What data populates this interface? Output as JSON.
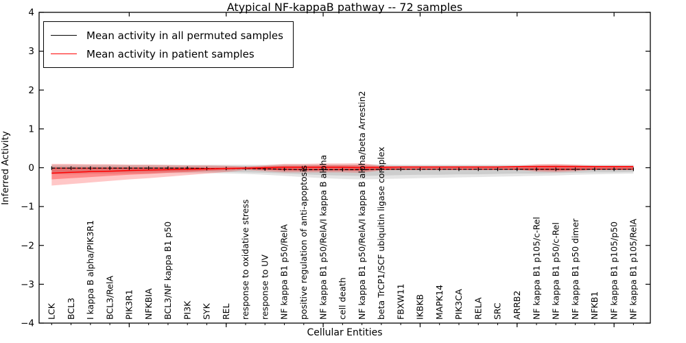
{
  "title": "Atypical NF-kappaB pathway -- 72 samples",
  "legend": {
    "items": [
      {
        "label": "Mean activity in all permuted samples",
        "color": "#000000"
      },
      {
        "label": "Mean activity in patient samples",
        "color": "#ff0000"
      }
    ]
  },
  "axes": {
    "xlabel": "Cellular Entities",
    "ylabel": "Inferred Activity"
  },
  "colors": {
    "permuted_line": "#000000",
    "patient_line": "#ff0000",
    "permuted_band": "rgba(0,0,0,0.10)",
    "patient_band_outer": "rgba(255,0,0,0.22)",
    "patient_band_inner": "rgba(255,0,0,0.30)"
  },
  "chart_data": {
    "type": "line",
    "title": "Atypical NF-kappaB pathway -- 72 samples",
    "xlabel": "Cellular Entities",
    "ylabel": "Inferred Activity",
    "ylim": [
      -4,
      4
    ],
    "yticks": [
      -4,
      -3,
      -2,
      -1,
      0,
      1,
      2,
      3,
      4
    ],
    "grid": false,
    "legend_position": "upper left",
    "top_tick_indices": [
      4,
      9,
      14,
      19,
      24,
      29
    ],
    "categories": [
      "LCK",
      "BCL3",
      "I kappa B alpha/PIK3R1",
      "BCL3/RelA",
      "PIK3R1",
      "NFKBIA",
      "BCL3/NF kappa B1 p50",
      "PI3K",
      "SYK",
      "REL",
      "response to oxidative stress",
      "response to UV",
      "NF kappa B1 p50/RelA",
      "positive regulation of anti-apoptosis",
      "NF kappa B1 p50/RelA/I kappa B alpha",
      "cell death",
      "NF kappa B1 p50/RelA/I kappa B alpha/beta Arrestin2",
      "beta TrCP1/SCF ubiquitin ligase complex",
      "FBXW11",
      "IKBKB",
      "MAPK14",
      "PIK3CA",
      "RELA",
      "SRC",
      "ARRB2",
      "NF kappa B1 p105/c-Rel",
      "NF kappa B1 p50/c-Rel",
      "NF kappa B1 p50 dimer",
      "NFKB1",
      "NF kappa B1 p105/p50",
      "NF kappa B1 p105/RelA"
    ],
    "series": [
      {
        "name": "Mean activity in all permuted samples",
        "color": "#000000",
        "style": "dashed-with-tick-markers",
        "values": [
          -0.01,
          -0.01,
          -0.01,
          -0.01,
          -0.01,
          -0.01,
          -0.01,
          -0.01,
          -0.02,
          -0.02,
          -0.02,
          -0.03,
          -0.04,
          -0.05,
          -0.05,
          -0.05,
          -0.05,
          -0.04,
          -0.04,
          -0.04,
          -0.04,
          -0.04,
          -0.04,
          -0.04,
          -0.04,
          -0.04,
          -0.04,
          -0.04,
          -0.04,
          -0.04,
          -0.04
        ]
      },
      {
        "name": "Mean activity in patient samples",
        "color": "#ff0000",
        "style": "solid",
        "values": [
          -0.14,
          -0.12,
          -0.1,
          -0.09,
          -0.07,
          -0.06,
          -0.05,
          -0.04,
          -0.03,
          -0.02,
          -0.01,
          0.0,
          0.01,
          0.01,
          0.01,
          0.01,
          0.0,
          0.01,
          0.02,
          0.02,
          0.02,
          0.02,
          0.02,
          0.02,
          0.03,
          0.03,
          0.03,
          0.03,
          0.03,
          0.03,
          0.03
        ]
      }
    ],
    "bands": [
      {
        "name": "permuted-range-outer",
        "color": "rgba(0,0,0,0.10)",
        "upper": [
          0.08,
          0.08,
          0.08,
          0.08,
          0.08,
          0.08,
          0.08,
          0.08,
          0.08,
          0.08,
          0.08,
          0.08,
          0.09,
          0.09,
          0.09,
          0.09,
          0.09,
          0.09,
          0.08,
          0.08,
          0.08,
          0.08,
          0.08,
          0.08,
          0.08,
          0.08,
          0.08,
          0.08,
          0.08,
          0.08,
          0.08
        ],
        "lower": [
          -0.17,
          -0.17,
          -0.16,
          -0.16,
          -0.15,
          -0.15,
          -0.14,
          -0.14,
          -0.14,
          -0.15,
          -0.16,
          -0.18,
          -0.21,
          -0.24,
          -0.27,
          -0.29,
          -0.3,
          -0.29,
          -0.28,
          -0.27,
          -0.26,
          -0.25,
          -0.24,
          -0.23,
          -0.22,
          -0.21,
          -0.2,
          -0.18,
          -0.17,
          -0.16,
          -0.15
        ]
      },
      {
        "name": "permuted-range-inner",
        "color": "rgba(0,0,0,0.10)",
        "upper": [
          0.05,
          0.05,
          0.05,
          0.05,
          0.05,
          0.05,
          0.05,
          0.05,
          0.05,
          0.05,
          0.05,
          0.05,
          0.06,
          0.06,
          0.06,
          0.06,
          0.06,
          0.06,
          0.05,
          0.05,
          0.05,
          0.05,
          0.05,
          0.05,
          0.05,
          0.05,
          0.05,
          0.05,
          0.05,
          0.05,
          0.05
        ],
        "lower": [
          -0.12,
          -0.12,
          -0.11,
          -0.11,
          -0.11,
          -0.1,
          -0.1,
          -0.1,
          -0.1,
          -0.11,
          -0.12,
          -0.13,
          -0.15,
          -0.17,
          -0.19,
          -0.2,
          -0.21,
          -0.2,
          -0.19,
          -0.18,
          -0.18,
          -0.17,
          -0.17,
          -0.16,
          -0.15,
          -0.15,
          -0.14,
          -0.13,
          -0.12,
          -0.12,
          -0.11
        ]
      },
      {
        "name": "patient-range-outer",
        "color": "rgba(255,0,0,0.22)",
        "upper": [
          0.1,
          0.1,
          0.09,
          0.09,
          0.08,
          0.08,
          0.07,
          0.06,
          0.06,
          0.05,
          0.03,
          0.06,
          0.1,
          0.1,
          0.11,
          0.11,
          0.12,
          0.05,
          0.03,
          0.03,
          0.03,
          0.03,
          0.03,
          0.03,
          0.04,
          0.09,
          0.1,
          0.08,
          0.05,
          0.05,
          0.05
        ],
        "lower": [
          -0.46,
          -0.42,
          -0.38,
          -0.34,
          -0.3,
          -0.27,
          -0.23,
          -0.19,
          -0.15,
          -0.11,
          -0.06,
          -0.09,
          -0.12,
          -0.12,
          -0.12,
          -0.12,
          -0.13,
          -0.07,
          -0.04,
          -0.04,
          -0.04,
          -0.04,
          -0.04,
          -0.04,
          -0.05,
          -0.1,
          -0.11,
          -0.09,
          -0.05,
          -0.05,
          -0.05
        ]
      },
      {
        "name": "patient-range-inner",
        "color": "rgba(255,0,0,0.30)",
        "upper": [
          -0.02,
          -0.02,
          -0.01,
          -0.01,
          0.0,
          0.0,
          0.0,
          0.0,
          0.0,
          0.01,
          0.01,
          0.03,
          0.05,
          0.05,
          0.06,
          0.06,
          0.06,
          0.03,
          0.02,
          0.02,
          0.02,
          0.02,
          0.02,
          0.02,
          0.02,
          0.05,
          0.06,
          0.05,
          0.03,
          0.03,
          0.03
        ],
        "lower": [
          -0.3,
          -0.27,
          -0.24,
          -0.21,
          -0.18,
          -0.16,
          -0.13,
          -0.11,
          -0.08,
          -0.06,
          -0.03,
          -0.05,
          -0.07,
          -0.07,
          -0.07,
          -0.07,
          -0.08,
          -0.04,
          -0.02,
          -0.02,
          -0.02,
          -0.02,
          -0.02,
          -0.02,
          -0.02,
          -0.06,
          -0.07,
          -0.06,
          -0.03,
          -0.03,
          -0.03
        ]
      }
    ]
  }
}
